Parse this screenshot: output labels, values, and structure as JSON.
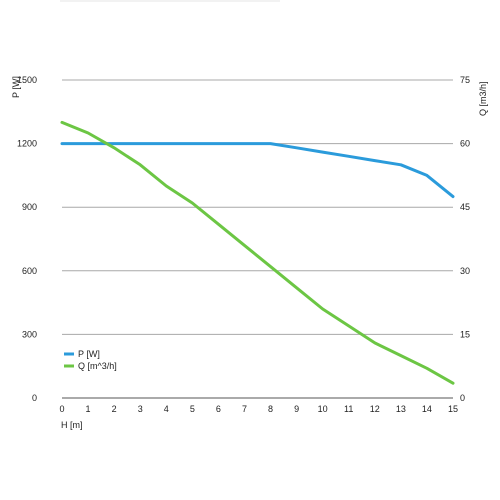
{
  "chart_data": {
    "type": "line",
    "xlabel": "H [m]",
    "ylabel_left": "P [W]",
    "ylabel_right": "Q [m3/h]",
    "x_ticks": [
      0,
      1,
      2,
      3,
      4,
      5,
      6,
      7,
      8,
      9,
      10,
      11,
      12,
      13,
      14,
      15
    ],
    "xlim": [
      0,
      15
    ],
    "ylim_left": [
      0,
      1500
    ],
    "ylim_right": [
      0,
      75
    ],
    "y_ticks_left": [
      0,
      300,
      600,
      900,
      1200,
      1500
    ],
    "y_ticks_right": [
      0,
      15,
      30,
      45,
      60,
      75
    ],
    "grid": "horizontal",
    "legend_position": "bottom-left",
    "series": [
      {
        "name": "P [W]",
        "axis": "left",
        "color": "#2b9bdb",
        "x": [
          0,
          1,
          2,
          3,
          4,
          5,
          6,
          7,
          8,
          9,
          10,
          11,
          12,
          13,
          14,
          15
        ],
        "y": [
          1200,
          1200,
          1200,
          1200,
          1200,
          1200,
          1200,
          1200,
          1200,
          1180,
          1160,
          1140,
          1120,
          1100,
          1050,
          950
        ]
      },
      {
        "name": "Q [m^3/h]",
        "axis": "right",
        "color": "#6cc644",
        "x": [
          0,
          1,
          2,
          3,
          4,
          5,
          6,
          7,
          8,
          9,
          10,
          11,
          12,
          13,
          14,
          15
        ],
        "y": [
          65,
          62.5,
          59,
          55,
          50,
          46,
          41,
          36,
          31,
          26,
          21,
          17,
          13,
          10,
          7,
          3.5
        ]
      }
    ]
  }
}
